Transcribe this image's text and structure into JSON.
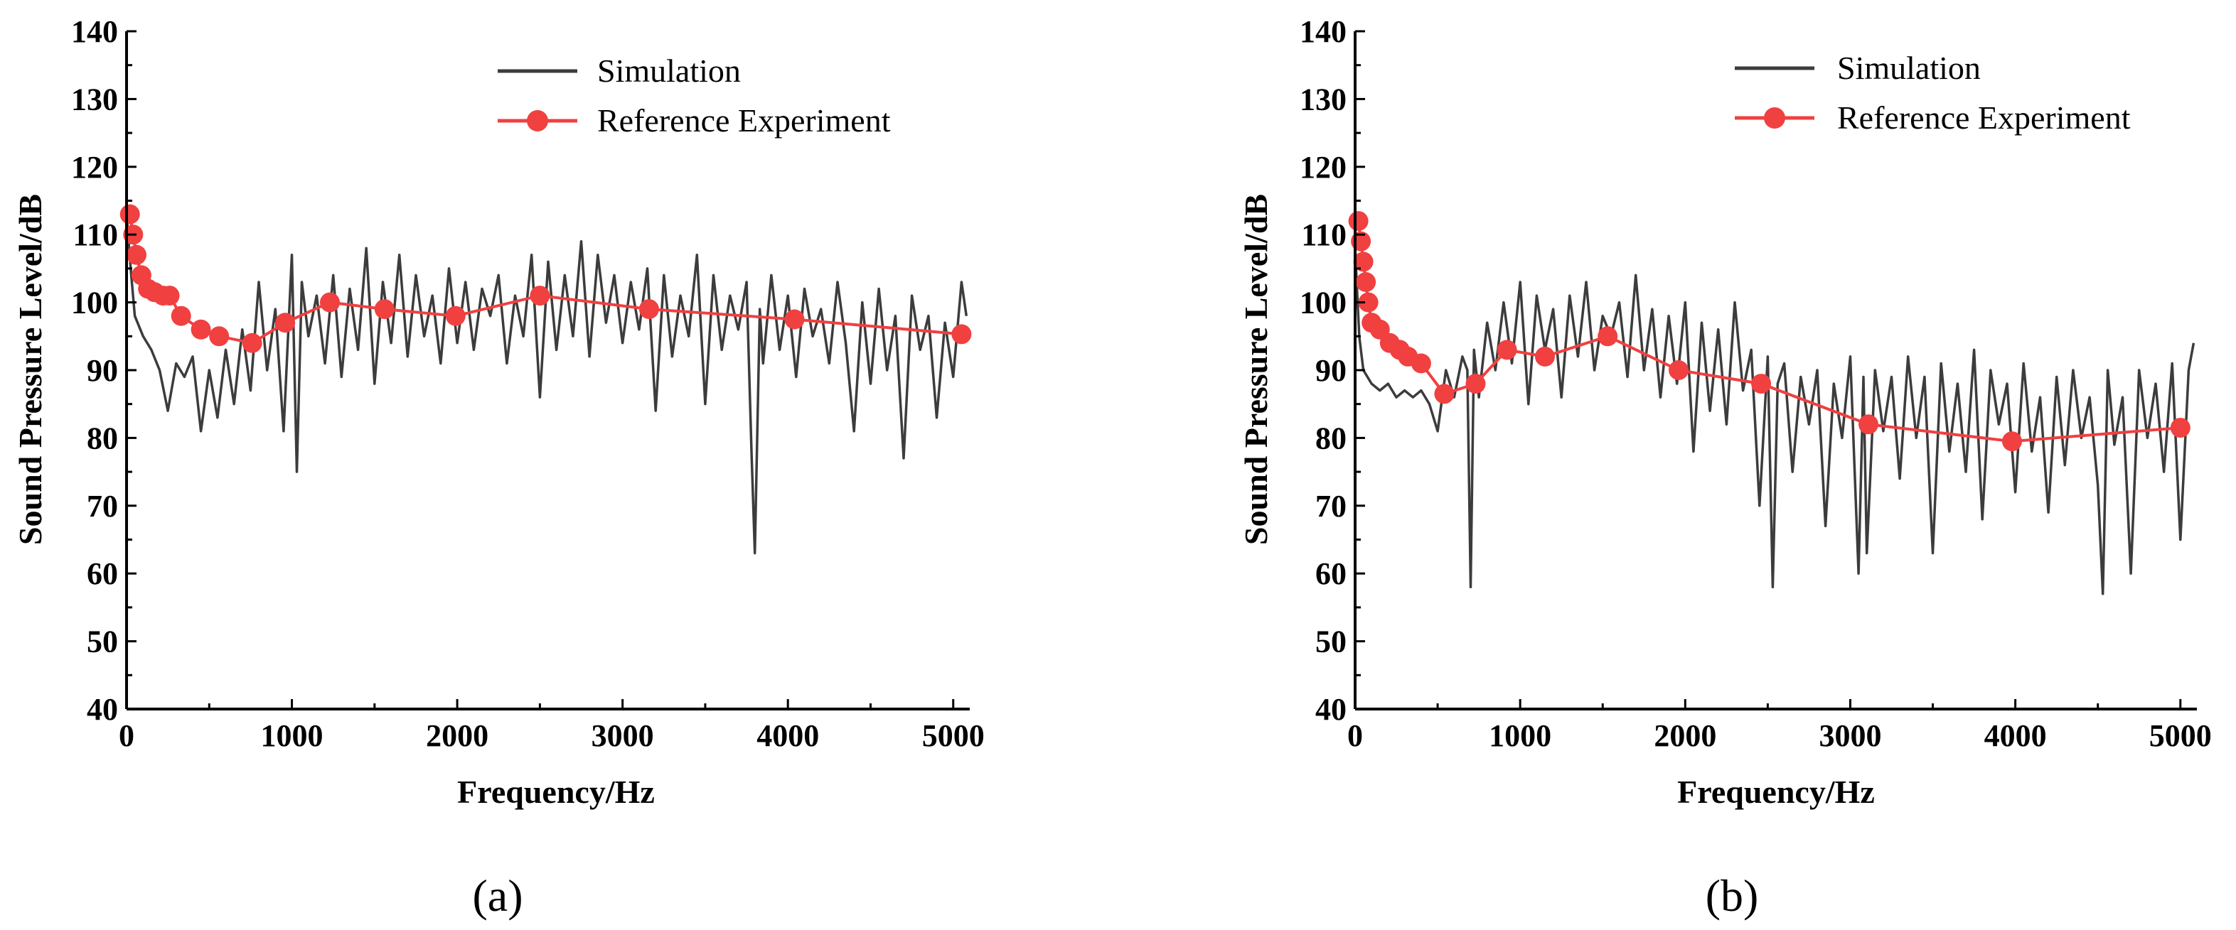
{
  "chart_data": [
    {
      "type": "line",
      "panel_label": "(a)",
      "xlabel": "Frequency/Hz",
      "ylabel": "Sound Pressure Level/dB",
      "xlim": [
        0,
        5100
      ],
      "ylim": [
        40,
        140
      ],
      "x_ticks": [
        0,
        1000,
        2000,
        3000,
        4000,
        5000
      ],
      "y_ticks": [
        40,
        50,
        60,
        70,
        80,
        90,
        100,
        110,
        120,
        130,
        140
      ],
      "legend": "top-right",
      "series": [
        {
          "name": "Simulation",
          "color": "#3c3c3c",
          "style": "line",
          "x": [
            0,
            25,
            50,
            100,
            150,
            200,
            250,
            300,
            350,
            400,
            450,
            500,
            550,
            600,
            650,
            700,
            750,
            800,
            850,
            900,
            950,
            1000,
            1030,
            1060,
            1100,
            1150,
            1200,
            1250,
            1300,
            1350,
            1400,
            1450,
            1500,
            1550,
            1600,
            1650,
            1700,
            1750,
            1800,
            1850,
            1900,
            1950,
            2000,
            2050,
            2100,
            2150,
            2200,
            2250,
            2300,
            2350,
            2400,
            2450,
            2500,
            2550,
            2600,
            2650,
            2700,
            2750,
            2800,
            2850,
            2900,
            2950,
            3000,
            3050,
            3100,
            3150,
            3200,
            3250,
            3300,
            3350,
            3400,
            3450,
            3500,
            3550,
            3600,
            3650,
            3700,
            3750,
            3780,
            3800,
            3830,
            3850,
            3900,
            3950,
            4000,
            4050,
            4100,
            4150,
            4200,
            4250,
            4300,
            4350,
            4400,
            4450,
            4500,
            4550,
            4600,
            4650,
            4700,
            4750,
            4800,
            4850,
            4900,
            4950,
            5000,
            5050,
            5080
          ],
          "y": [
            113,
            105,
            98,
            95,
            93,
            90,
            84,
            91,
            89,
            92,
            81,
            90,
            83,
            93,
            85,
            96,
            87,
            103,
            90,
            99,
            81,
            107,
            75,
            103,
            95,
            101,
            91,
            104,
            89,
            102,
            93,
            108,
            88,
            103,
            94,
            107,
            92,
            104,
            95,
            101,
            91,
            105,
            94,
            103,
            93,
            102,
            98,
            104,
            91,
            101,
            95,
            107,
            86,
            106,
            93,
            104,
            95,
            109,
            92,
            107,
            97,
            104,
            94,
            103,
            96,
            105,
            84,
            104,
            92,
            101,
            95,
            107,
            85,
            104,
            93,
            101,
            96,
            103,
            78,
            63,
            99,
            91,
            104,
            93,
            101,
            89,
            102,
            95,
            99,
            91,
            103,
            94,
            81,
            100,
            88,
            102,
            90,
            98,
            77,
            101,
            93,
            98,
            83,
            97,
            89,
            103,
            98
          ]
        },
        {
          "name": "Reference Experiment",
          "color": "#f04040",
          "style": "line+marker",
          "x": [
            20,
            40,
            60,
            90,
            130,
            170,
            220,
            260,
            330,
            450,
            560,
            760,
            960,
            1230,
            1560,
            1990,
            2500,
            3160,
            4040,
            5050
          ],
          "y": [
            113,
            110,
            107,
            104,
            102,
            101.5,
            101,
            101,
            98,
            96,
            95,
            94,
            97,
            100,
            99,
            98,
            101,
            99,
            97.5,
            95.3
          ]
        }
      ]
    },
    {
      "type": "line",
      "panel_label": "(b)",
      "xlabel": "Frequency/Hz",
      "ylabel": "Sound Pressure Level/dB",
      "xlim": [
        0,
        5100
      ],
      "ylim": [
        40,
        140
      ],
      "x_ticks": [
        0,
        1000,
        2000,
        3000,
        4000,
        5000
      ],
      "y_ticks": [
        40,
        50,
        60,
        70,
        80,
        90,
        100,
        110,
        120,
        130,
        140
      ],
      "legend": "top-right",
      "series": [
        {
          "name": "Simulation",
          "color": "#3c3c3c",
          "style": "line",
          "x": [
            0,
            25,
            50,
            100,
            150,
            200,
            250,
            300,
            350,
            400,
            450,
            500,
            550,
            600,
            650,
            680,
            700,
            720,
            750,
            800,
            850,
            900,
            950,
            1000,
            1050,
            1100,
            1150,
            1200,
            1250,
            1300,
            1350,
            1400,
            1450,
            1500,
            1550,
            1600,
            1650,
            1700,
            1750,
            1800,
            1850,
            1900,
            1950,
            2000,
            2050,
            2100,
            2150,
            2200,
            2250,
            2300,
            2350,
            2400,
            2450,
            2500,
            2530,
            2560,
            2600,
            2650,
            2700,
            2750,
            2800,
            2850,
            2900,
            2950,
            3000,
            3050,
            3080,
            3100,
            3150,
            3200,
            3250,
            3300,
            3350,
            3400,
            3450,
            3500,
            3550,
            3600,
            3650,
            3700,
            3750,
            3800,
            3850,
            3900,
            3950,
            4000,
            4050,
            4100,
            4150,
            4200,
            4250,
            4300,
            4350,
            4400,
            4450,
            4500,
            4530,
            4560,
            4600,
            4650,
            4700,
            4750,
            4800,
            4850,
            4900,
            4950,
            5000,
            5050,
            5080
          ],
          "y": [
            108,
            95,
            90,
            88,
            87,
            88,
            86,
            87,
            86,
            87,
            85,
            81,
            90,
            86,
            92,
            90,
            58,
            93,
            86,
            97,
            90,
            100,
            91,
            103,
            85,
            101,
            93,
            99,
            86,
            101,
            92,
            103,
            90,
            98,
            95,
            100,
            89,
            104,
            90,
            99,
            86,
            98,
            88,
            100,
            78,
            97,
            84,
            96,
            82,
            100,
            87,
            93,
            70,
            92,
            58,
            88,
            91,
            75,
            89,
            82,
            90,
            67,
            88,
            80,
            92,
            60,
            89,
            63,
            90,
            81,
            89,
            74,
            92,
            80,
            89,
            63,
            91,
            78,
            88,
            75,
            93,
            68,
            90,
            82,
            88,
            72,
            91,
            78,
            86,
            69,
            89,
            76,
            90,
            80,
            86,
            73,
            57,
            90,
            79,
            86,
            60,
            90,
            80,
            88,
            75,
            91,
            65,
            90,
            94
          ]
        },
        {
          "name": "Reference Experiment",
          "color": "#f04040",
          "style": "line+marker",
          "x": [
            20,
            35,
            50,
            65,
            80,
            100,
            150,
            210,
            270,
            320,
            400,
            540,
            730,
            920,
            1150,
            1530,
            1960,
            2460,
            3110,
            3980,
            5000
          ],
          "y": [
            112,
            109,
            106,
            103,
            100,
            97,
            96,
            94,
            93,
            92,
            91,
            86.5,
            88,
            93,
            92,
            95,
            90,
            88,
            82,
            79.5,
            81.5
          ]
        }
      ]
    }
  ]
}
